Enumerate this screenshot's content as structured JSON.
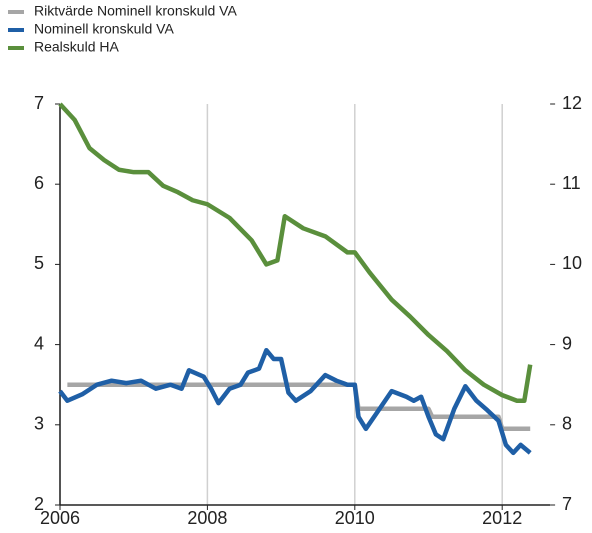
{
  "chart_data": {
    "type": "line",
    "legend": "top-left",
    "grid": "x",
    "xlim": [
      2006,
      2012.65
    ],
    "xticks": [
      2006,
      2008,
      2010,
      2012
    ],
    "ylim": [
      2,
      7
    ],
    "yticks": [
      2,
      3,
      4,
      5,
      6,
      7
    ],
    "y2lim": [
      7,
      12
    ],
    "y2ticks": [
      7,
      8,
      9,
      10,
      11,
      12
    ],
    "series": [
      {
        "name": "Riktvärde Nominell kronskuld VA",
        "color": "#a6a6a6",
        "axis": "y",
        "x": [
          2006.1,
          2010.0,
          2010.05,
          2011.0,
          2011.05,
          2011.95,
          2012.0,
          2012.38
        ],
        "values": [
          3.5,
          3.5,
          3.2,
          3.2,
          3.1,
          3.1,
          2.95,
          2.95
        ]
      },
      {
        "name": "Nominell kronskuld VA",
        "color": "#1f5fa6",
        "axis": "y",
        "x": [
          2006.0,
          2006.1,
          2006.3,
          2006.5,
          2006.7,
          2006.9,
          2007.1,
          2007.3,
          2007.5,
          2007.65,
          2007.75,
          2007.95,
          2008.05,
          2008.15,
          2008.3,
          2008.45,
          2008.55,
          2008.7,
          2008.8,
          2008.9,
          2009.0,
          2009.1,
          2009.2,
          2009.4,
          2009.6,
          2009.75,
          2009.9,
          2010.0,
          2010.05,
          2010.15,
          2010.3,
          2010.5,
          2010.7,
          2010.8,
          2010.9,
          2011.0,
          2011.1,
          2011.2,
          2011.35,
          2011.5,
          2011.65,
          2011.8,
          2011.95,
          2012.05,
          2012.15,
          2012.25,
          2012.38
        ],
        "values": [
          3.42,
          3.3,
          3.38,
          3.5,
          3.55,
          3.52,
          3.55,
          3.45,
          3.5,
          3.45,
          3.68,
          3.6,
          3.45,
          3.27,
          3.45,
          3.5,
          3.65,
          3.7,
          3.93,
          3.82,
          3.82,
          3.4,
          3.3,
          3.42,
          3.62,
          3.55,
          3.5,
          3.5,
          3.1,
          2.95,
          3.15,
          3.42,
          3.35,
          3.3,
          3.35,
          3.1,
          2.88,
          2.82,
          3.2,
          3.48,
          3.3,
          3.18,
          3.05,
          2.75,
          2.65,
          2.75,
          2.65
        ]
      },
      {
        "name": "Realskuld HA",
        "color": "#5a8f3c",
        "axis": "y2",
        "x": [
          2006.0,
          2006.2,
          2006.4,
          2006.6,
          2006.8,
          2007.0,
          2007.2,
          2007.4,
          2007.6,
          2007.8,
          2008.0,
          2008.3,
          2008.6,
          2008.8,
          2008.95,
          2009.05,
          2009.3,
          2009.6,
          2009.9,
          2010.0,
          2010.2,
          2010.5,
          2010.75,
          2011.0,
          2011.25,
          2011.5,
          2011.75,
          2012.0,
          2012.2,
          2012.3,
          2012.38
        ],
        "values": [
          12.0,
          11.8,
          11.45,
          11.3,
          11.18,
          11.15,
          11.15,
          10.98,
          10.9,
          10.8,
          10.75,
          10.58,
          10.3,
          10.0,
          10.05,
          10.6,
          10.45,
          10.35,
          10.15,
          10.15,
          9.9,
          9.56,
          9.35,
          9.12,
          8.92,
          8.68,
          8.5,
          8.37,
          8.3,
          8.3,
          8.75
        ]
      }
    ]
  }
}
